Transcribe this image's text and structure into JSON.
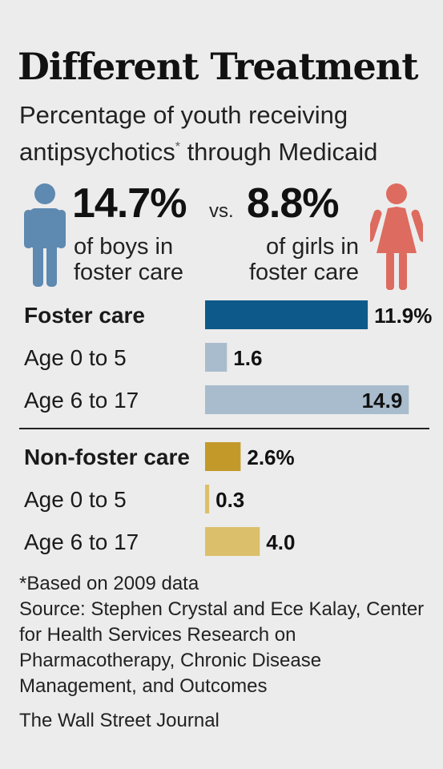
{
  "title": "Different Treatment",
  "subtitle": "Percentage of youth receiving antipsychotics",
  "subtitle_mark": "*",
  "subtitle_rest": " through Medicaid",
  "boys": {
    "value": "14.7%",
    "label_line1": "of boys in",
    "label_line2": "foster care",
    "icon": "boy-icon",
    "color": "#5e89b0"
  },
  "vs": "vs.",
  "girls": {
    "value": "8.8%",
    "label_line1": "of girls in",
    "label_line2": "foster care",
    "icon": "girl-icon",
    "color": "#dd6b5f"
  },
  "chart_data": {
    "type": "bar",
    "orientation": "horizontal",
    "xlim": [
      0,
      15
    ],
    "groups": [
      {
        "name": "Foster care",
        "rows": [
          {
            "label": "Foster care",
            "value": 11.9,
            "display": "11.9%",
            "color": "#0d5a8a",
            "bold": true
          },
          {
            "label": "Age 0 to 5",
            "value": 1.6,
            "display": "1.6",
            "color": "#a9bccd",
            "bold": false
          },
          {
            "label": "Age 6 to 17",
            "value": 14.9,
            "display": "14.9",
            "color": "#a9bccd",
            "bold": false
          }
        ]
      },
      {
        "name": "Non-foster care",
        "rows": [
          {
            "label": "Non-foster care",
            "value": 2.6,
            "display": "2.6%",
            "color": "#c39a2a",
            "bold": true
          },
          {
            "label": "Age 0 to 5",
            "value": 0.3,
            "display": "0.3",
            "color": "#dcbf6a",
            "bold": false
          },
          {
            "label": "Age 6 to 17",
            "value": 4.0,
            "display": "4.0",
            "color": "#dcbf6a",
            "bold": false
          }
        ]
      }
    ]
  },
  "footnote": {
    "note": "*Based on 2009 data",
    "source": "Source: Stephen Crystal and Ece Kalay, Center for Health Services Research on Pharmacotherapy, Chronic Disease Management, and Outcomes"
  },
  "credit": "The Wall Street Journal"
}
